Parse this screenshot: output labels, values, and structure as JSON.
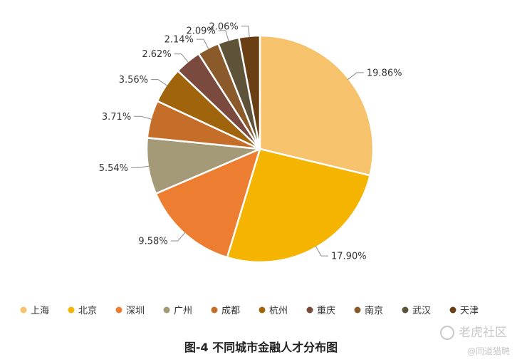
{
  "chart_data": {
    "type": "pie",
    "title": "图-4 不同城市金融人才分布图",
    "legend_position": "bottom",
    "slices": [
      {
        "name": "上海",
        "value": 19.86,
        "label": "19.86%",
        "color": "#F6C26B"
      },
      {
        "name": "北京",
        "value": 17.9,
        "label": "17.90%",
        "color": "#F4B400"
      },
      {
        "name": "深圳",
        "value": 9.58,
        "label": "9.58%",
        "color": "#ED7D31"
      },
      {
        "name": "广州",
        "value": 5.54,
        "label": "5.54%",
        "color": "#A59A77"
      },
      {
        "name": "成都",
        "value": 3.71,
        "label": "3.71%",
        "color": "#C56E2A"
      },
      {
        "name": "杭州",
        "value": 3.56,
        "label": "3.56%",
        "color": "#A0640C"
      },
      {
        "name": "重庆",
        "value": 2.62,
        "label": "2.62%",
        "color": "#7A4A3E"
      },
      {
        "name": "南京",
        "value": 2.14,
        "label": "2.14%",
        "color": "#8B5A2B"
      },
      {
        "name": "武汉",
        "value": 2.09,
        "label": "2.09%",
        "color": "#5E5338"
      },
      {
        "name": "天津",
        "value": 2.06,
        "label": "2.06%",
        "color": "#6B3F14"
      }
    ]
  },
  "watermark": {
    "main": "老虎社区",
    "sub": "@同道猎聘"
  }
}
